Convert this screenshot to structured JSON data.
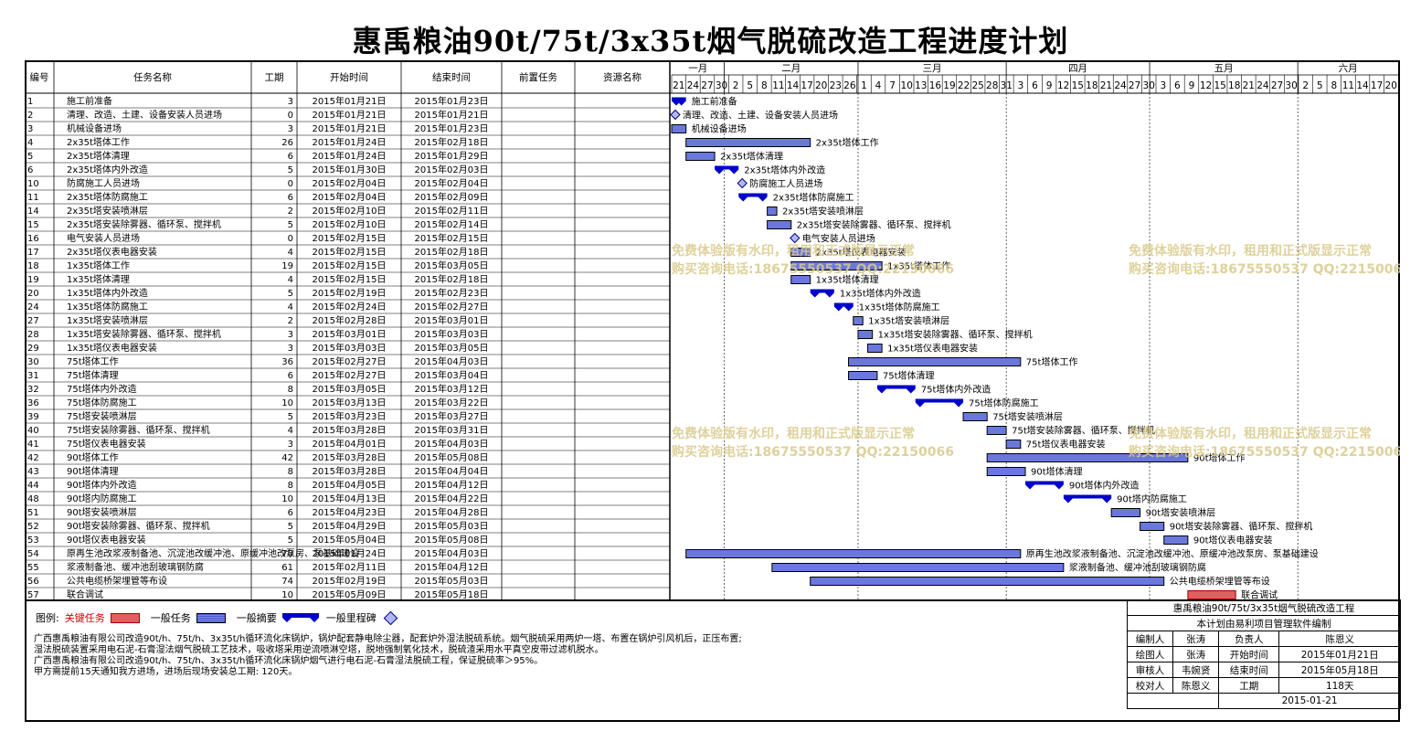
{
  "title": "惠禹粮油90t/75t/3x35t烟气脱硫改造工程进度计划",
  "columns": {
    "id": "编号",
    "name": "任务名称",
    "dur": "工期",
    "start": "开始时间",
    "end": "结束时间",
    "pred": "前置任务",
    "res": "资源名称"
  },
  "timeline": {
    "months": [
      "一月",
      "二月",
      "三月",
      "四月",
      "五月",
      "六月"
    ],
    "start_date": "2015-01-21",
    "end_date": "2015-06-21",
    "tick_days": [
      "21",
      "24",
      "27",
      "30",
      "2",
      "5",
      "8",
      "11",
      "14",
      "17",
      "20",
      "23",
      "26",
      "1",
      "4",
      "7",
      "10",
      "13",
      "16",
      "19",
      "22",
      "25",
      "28",
      "31",
      "3",
      "6",
      "9",
      "12",
      "15",
      "18",
      "21",
      "24",
      "27",
      "30",
      "3",
      "6",
      "9",
      "12",
      "15",
      "18",
      "21",
      "24",
      "27",
      "30",
      "2",
      "5",
      "8",
      "11",
      "14",
      "17",
      "20"
    ]
  },
  "chart_data": {
    "type": "gantt",
    "title": "惠禹粮油90t/75t/3x35t烟气脱硫改造工程进度计划",
    "x_range": [
      "2015-01-21",
      "2015-06-21"
    ],
    "tasks": [
      {
        "id": "1",
        "name": "施工前准备",
        "dur": "3",
        "start": "2015年01月21日",
        "end": "2015年01月23日",
        "s": "2015-01-21",
        "e": "2015-01-23",
        "kind": "summary"
      },
      {
        "id": "2",
        "name": "清理、改造、土建、设备安装人员进场",
        "dur": "0",
        "start": "2015年01月21日",
        "end": "2015年01月21日",
        "s": "2015-01-21",
        "e": "2015-01-21",
        "kind": "milestone"
      },
      {
        "id": "3",
        "name": "机械设备进场",
        "dur": "3",
        "start": "2015年01月21日",
        "end": "2015年01月23日",
        "s": "2015-01-21",
        "e": "2015-01-23",
        "kind": "task"
      },
      {
        "id": "4",
        "name": "2x35t塔体工作",
        "dur": "26",
        "start": "2015年01月24日",
        "end": "2015年02月18日",
        "s": "2015-01-24",
        "e": "2015-02-18",
        "kind": "task"
      },
      {
        "id": "5",
        "name": "2x35t塔体清理",
        "dur": "6",
        "start": "2015年01月24日",
        "end": "2015年01月29日",
        "s": "2015-01-24",
        "e": "2015-01-29",
        "kind": "task"
      },
      {
        "id": "6",
        "name": "2x35t塔体内外改造",
        "dur": "5",
        "start": "2015年01月30日",
        "end": "2015年02月03日",
        "s": "2015-01-30",
        "e": "2015-02-03",
        "kind": "summary"
      },
      {
        "id": "10",
        "name": "防腐施工人员进场",
        "dur": "0",
        "start": "2015年02月04日",
        "end": "2015年02月04日",
        "s": "2015-02-04",
        "e": "2015-02-04",
        "kind": "milestone"
      },
      {
        "id": "11",
        "name": "2x35t塔体防腐施工",
        "dur": "6",
        "start": "2015年02月04日",
        "end": "2015年02月09日",
        "s": "2015-02-04",
        "e": "2015-02-09",
        "kind": "summary"
      },
      {
        "id": "14",
        "name": "2x35t塔安装喷淋层",
        "dur": "2",
        "start": "2015年02月10日",
        "end": "2015年02月11日",
        "s": "2015-02-10",
        "e": "2015-02-11",
        "kind": "task"
      },
      {
        "id": "15",
        "name": "2x35t塔安装除雾器、循环泵、搅拌机",
        "dur": "5",
        "start": "2015年02月10日",
        "end": "2015年02月14日",
        "s": "2015-02-10",
        "e": "2015-02-14",
        "kind": "task"
      },
      {
        "id": "16",
        "name": "电气安装人员进场",
        "dur": "0",
        "start": "2015年02月15日",
        "end": "2015年02月15日",
        "s": "2015-02-15",
        "e": "2015-02-15",
        "kind": "milestone"
      },
      {
        "id": "17",
        "name": "2x35t塔仪表电器安装",
        "dur": "4",
        "start": "2015年02月15日",
        "end": "2015年02月18日",
        "s": "2015-02-15",
        "e": "2015-02-18",
        "kind": "task"
      },
      {
        "id": "18",
        "name": "1x35t塔体工作",
        "dur": "19",
        "start": "2015年02月15日",
        "end": "2015年03月05日",
        "s": "2015-02-15",
        "e": "2015-03-05",
        "kind": "task"
      },
      {
        "id": "19",
        "name": "1x35t塔体清理",
        "dur": "4",
        "start": "2015年02月15日",
        "end": "2015年02月18日",
        "s": "2015-02-15",
        "e": "2015-02-18",
        "kind": "task"
      },
      {
        "id": "20",
        "name": "1x35t塔体内外改造",
        "dur": "5",
        "start": "2015年02月19日",
        "end": "2015年02月23日",
        "s": "2015-02-19",
        "e": "2015-02-23",
        "kind": "summary"
      },
      {
        "id": "24",
        "name": "1x35t塔体防腐施工",
        "dur": "4",
        "start": "2015年02月24日",
        "end": "2015年02月27日",
        "s": "2015-02-24",
        "e": "2015-02-27",
        "kind": "summary"
      },
      {
        "id": "27",
        "name": "1x35t塔安装喷淋层",
        "dur": "2",
        "start": "2015年02月28日",
        "end": "2015年03月01日",
        "s": "2015-02-28",
        "e": "2015-03-01",
        "kind": "task"
      },
      {
        "id": "28",
        "name": "1x35t塔安装除雾器、循环泵、搅拌机",
        "dur": "3",
        "start": "2015年03月01日",
        "end": "2015年03月03日",
        "s": "2015-03-01",
        "e": "2015-03-03",
        "kind": "task"
      },
      {
        "id": "29",
        "name": "1x35t塔仪表电器安装",
        "dur": "3",
        "start": "2015年03月03日",
        "end": "2015年03月05日",
        "s": "2015-03-03",
        "e": "2015-03-05",
        "kind": "task"
      },
      {
        "id": "30",
        "name": "75t塔体工作",
        "dur": "36",
        "start": "2015年02月27日",
        "end": "2015年04月03日",
        "s": "2015-02-27",
        "e": "2015-04-03",
        "kind": "task"
      },
      {
        "id": "31",
        "name": "75t塔体清理",
        "dur": "6",
        "start": "2015年02月27日",
        "end": "2015年03月04日",
        "s": "2015-02-27",
        "e": "2015-03-04",
        "kind": "task"
      },
      {
        "id": "32",
        "name": "75t塔体内外改造",
        "dur": "8",
        "start": "2015年03月05日",
        "end": "2015年03月12日",
        "s": "2015-03-05",
        "e": "2015-03-12",
        "kind": "summary"
      },
      {
        "id": "36",
        "name": "75t塔体防腐施工",
        "dur": "10",
        "start": "2015年03月13日",
        "end": "2015年03月22日",
        "s": "2015-03-13",
        "e": "2015-03-22",
        "kind": "summary"
      },
      {
        "id": "39",
        "name": "75t塔安装喷淋层",
        "dur": "5",
        "start": "2015年03月23日",
        "end": "2015年03月27日",
        "s": "2015-03-23",
        "e": "2015-03-27",
        "kind": "task"
      },
      {
        "id": "40",
        "name": "75t塔安装除雾器、循环泵、搅拌机",
        "dur": "4",
        "start": "2015年03月28日",
        "end": "2015年03月31日",
        "s": "2015-03-28",
        "e": "2015-03-31",
        "kind": "task"
      },
      {
        "id": "41",
        "name": "75t塔仪表电器安装",
        "dur": "3",
        "start": "2015年04月01日",
        "end": "2015年04月03日",
        "s": "2015-04-01",
        "e": "2015-04-03",
        "kind": "task"
      },
      {
        "id": "42",
        "name": "90t塔体工作",
        "dur": "42",
        "start": "2015年03月28日",
        "end": "2015年05月08日",
        "s": "2015-03-28",
        "e": "2015-05-08",
        "kind": "task"
      },
      {
        "id": "43",
        "name": "90t塔体清理",
        "dur": "8",
        "start": "2015年03月28日",
        "end": "2015年04月04日",
        "s": "2015-03-28",
        "e": "2015-04-04",
        "kind": "task"
      },
      {
        "id": "44",
        "name": "90t塔体内外改造",
        "dur": "8",
        "start": "2015年04月05日",
        "end": "2015年04月12日",
        "s": "2015-04-05",
        "e": "2015-04-12",
        "kind": "summary"
      },
      {
        "id": "48",
        "name": "90t塔内防腐施工",
        "dur": "10",
        "start": "2015年04月13日",
        "end": "2015年04月22日",
        "s": "2015-04-13",
        "e": "2015-04-22",
        "kind": "summary"
      },
      {
        "id": "51",
        "name": "90t塔安装喷淋层",
        "dur": "6",
        "start": "2015年04月23日",
        "end": "2015年04月28日",
        "s": "2015-04-23",
        "e": "2015-04-28",
        "kind": "task"
      },
      {
        "id": "52",
        "name": "90t塔安装除雾器、循环泵、搅拌机",
        "dur": "5",
        "start": "2015年04月29日",
        "end": "2015年05月03日",
        "s": "2015-04-29",
        "e": "2015-05-03",
        "kind": "task"
      },
      {
        "id": "53",
        "name": "90t塔仪表电器安装",
        "dur": "5",
        "start": "2015年05月04日",
        "end": "2015年05月08日",
        "s": "2015-05-04",
        "e": "2015-05-08",
        "kind": "task"
      },
      {
        "id": "54",
        "name": "原再生池改浆液制备池、沉淀池改缓冲池、原缓冲池改泵房、泵基础建设",
        "dur": "70",
        "start": "2015年01月24日",
        "end": "2015年04月03日",
        "s": "2015-01-24",
        "e": "2015-04-03",
        "kind": "task"
      },
      {
        "id": "55",
        "name": "浆液制备池、缓冲池刮玻璃钢防腐",
        "dur": "61",
        "start": "2015年02月11日",
        "end": "2015年04月12日",
        "s": "2015-02-11",
        "e": "2015-04-12",
        "kind": "task"
      },
      {
        "id": "56",
        "name": "公共电缆桥架埋管等布设",
        "dur": "74",
        "start": "2015年02月19日",
        "end": "2015年05月03日",
        "s": "2015-02-19",
        "e": "2015-05-03",
        "kind": "task"
      },
      {
        "id": "57",
        "name": "联合调试",
        "dur": "10",
        "start": "2015年05月09日",
        "end": "2015年05月18日",
        "s": "2015-05-09",
        "e": "2015-05-18",
        "kind": "critical"
      }
    ]
  },
  "watermark": {
    "line1": "免费体验版有水印，租用和正式版显示正常",
    "line2": "购买咨询电话:18675550537 QQ:22150066"
  },
  "legend": {
    "label": "图例:",
    "critical": "关键任务",
    "task": "一般任务",
    "summary": "一般摘要",
    "milestone": "一般里程碑"
  },
  "notes": [
    "广西惠禹粮油有限公司改造90t/h、75t/h、3x35t/h循环流化床锅炉，锅炉配套静电除尘器，配套炉外湿法脱硫系统。烟气脱硫采用两炉一塔、布置在锅炉引风机后，正压布置;",
    "湿法脱硫装置采用电石泥-石膏湿法烟气脱硫工艺技术，吸收塔采用逆流喷淋空塔，脱地强制氧化技术，脱硫渣采用水平真空皮带过滤机脱水。",
    "广西惠禹粮油有限公司改造90t/h、75t/h、3x35t/h循环流化床锅炉烟气进行电石泥-石膏湿法脱硫工程，保证脱硫率＞95%。",
    "甲方需提前15天通知我方进场，进场后现场安装总工期: 120天。"
  ],
  "info": {
    "project": "惠禹粮油90t/75t/3x35t烟气脱硫改造工程",
    "software": "本计划由易利项目管理软件编制",
    "rows": [
      [
        "编制人",
        "张涛",
        "负责人",
        "陈恩义"
      ],
      [
        "绘图人",
        "张涛",
        "开始时间",
        "2015年01月21日"
      ],
      [
        "审核人",
        "韦婉贤",
        "结束时间",
        "2015年05月18日"
      ],
      [
        "校对人",
        "陈恩义",
        "工期",
        "118天"
      ]
    ],
    "date": "2015-01-21"
  }
}
